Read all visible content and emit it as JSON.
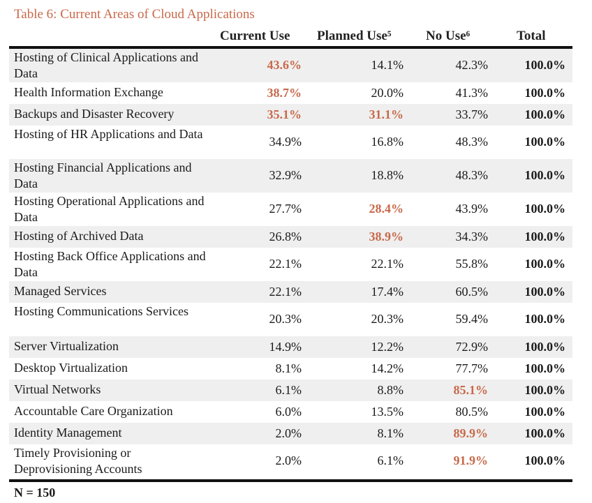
{
  "caption": "Table 6:  Current Areas of Cloud Applications",
  "columns": {
    "current": "Current Use",
    "planned": "Planned Use⁵",
    "nouse": "No Use⁶",
    "total": "Total"
  },
  "highlight_color": "#c8694a",
  "rows": [
    {
      "name": "Hosting of Clinical Applications and Data",
      "current": "43.6%",
      "planned": "14.1%",
      "nouse": "42.3%",
      "total": "100.0%",
      "hl": [
        "current"
      ]
    },
    {
      "name": "Health Information Exchange",
      "current": "38.7%",
      "planned": "20.0%",
      "nouse": "41.3%",
      "total": "100.0%",
      "hl": [
        "current"
      ]
    },
    {
      "name": "Backups and Disaster Recovery",
      "current": "35.1%",
      "planned": "31.1%",
      "nouse": "33.7%",
      "total": "100.0%",
      "hl": [
        "current",
        "planned"
      ]
    },
    {
      "name": "Hosting of HR Applications and Data",
      "current": "34.9%",
      "planned": "16.8%",
      "nouse": "48.3%",
      "total": "100.0%",
      "hl": []
    },
    {
      "name": "Hosting Financial Applications and Data",
      "current": "32.9%",
      "planned": "18.8%",
      "nouse": "48.3%",
      "total": "100.0%",
      "hl": []
    },
    {
      "name": "Hosting Operational Applications and Data",
      "current": "27.7%",
      "planned": "28.4%",
      "nouse": "43.9%",
      "total": "100.0%",
      "hl": [
        "planned"
      ]
    },
    {
      "name": "Hosting of Archived Data",
      "current": "26.8%",
      "planned": "38.9%",
      "nouse": "34.3%",
      "total": "100.0%",
      "hl": [
        "planned"
      ]
    },
    {
      "name": "Hosting Back Office Applications and Data",
      "current": "22.1%",
      "planned": "22.1%",
      "nouse": "55.8%",
      "total": "100.0%",
      "hl": []
    },
    {
      "name": "Managed Services",
      "current": "22.1%",
      "planned": "17.4%",
      "nouse": "60.5%",
      "total": "100.0%",
      "hl": []
    },
    {
      "name": "Hosting Communications Services",
      "current": "20.3%",
      "planned": "20.3%",
      "nouse": "59.4%",
      "total": "100.0%",
      "hl": []
    },
    {
      "name": "Server Virtualization",
      "current": "14.9%",
      "planned": "12.2%",
      "nouse": "72.9%",
      "total": "100.0%",
      "hl": []
    },
    {
      "name": "Desktop Virtualization",
      "current": "8.1%",
      "planned": "14.2%",
      "nouse": "77.7%",
      "total": "100.0%",
      "hl": []
    },
    {
      "name": "Virtual Networks",
      "current": "6.1%",
      "planned": "8.8%",
      "nouse": "85.1%",
      "total": "100.0%",
      "hl": [
        "nouse"
      ]
    },
    {
      "name": "Accountable Care Organization",
      "current": "6.0%",
      "planned": "13.5%",
      "nouse": "80.5%",
      "total": "100.0%",
      "hl": []
    },
    {
      "name": "Identity Management",
      "current": "2.0%",
      "planned": "8.1%",
      "nouse": "89.9%",
      "total": "100.0%",
      "hl": [
        "nouse"
      ]
    },
    {
      "name": "Timely Provisioning or Deprovisioning Accounts",
      "current": "2.0%",
      "planned": "6.1%",
      "nouse": "91.9%",
      "total": "100.0%",
      "hl": [
        "nouse"
      ]
    }
  ],
  "footnote": "N = 150"
}
